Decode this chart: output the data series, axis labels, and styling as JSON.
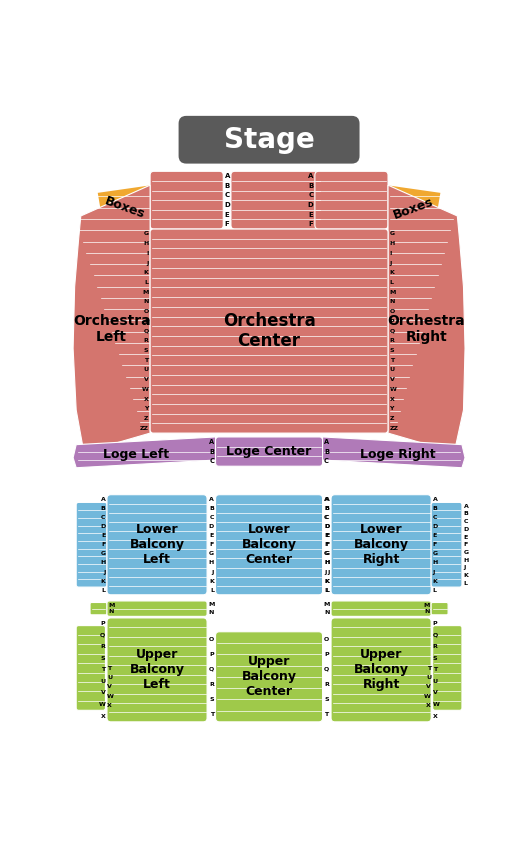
{
  "bg_color": "#ffffff",
  "stage_color": "#5a5a5a",
  "orchestra_color": "#d4756e",
  "loge_color": "#b07ab8",
  "lower_balcony_color": "#72b8db",
  "upper_balcony_color": "#9fc94a",
  "boxes_color": "#f0a830",
  "stage_label": "Stage",
  "boxes_label": "Boxes",
  "orch_left_label": "Orchestra\nLeft",
  "orch_center_label": "Orchestra\nCenter",
  "orch_right_label": "Orchestra\nRight",
  "loge_left_label": "Loge Left",
  "loge_center_label": "Loge Center",
  "loge_right_label": "Loge Right",
  "lb_left_label": "Lower\nBalcony\nLeft",
  "lb_center_label": "Lower\nBalcony\nCenter",
  "lb_right_label": "Lower\nBalcony\nRight",
  "ub_left_label": "Upper\nBalcony\nLeft",
  "ub_center_label": "Upper\nBalcony\nCenter",
  "ub_right_label": "Upper\nBalcony\nRight",
  "orch_top_rows": [
    "A",
    "B",
    "C",
    "D",
    "E",
    "F"
  ],
  "orch_main_rows": [
    "G",
    "H",
    "I",
    "J",
    "K",
    "L",
    "M",
    "N",
    "O",
    "P",
    "Q",
    "R",
    "S",
    "T",
    "U",
    "V",
    "W",
    "X",
    "Y",
    "Z",
    "ZZ"
  ],
  "loge_rows": [
    "A",
    "B",
    "C"
  ],
  "lb_rows": [
    "A",
    "B",
    "C",
    "D",
    "E",
    "F",
    "G",
    "H",
    "J",
    "K",
    "L"
  ],
  "ub_mn_rows": [
    "M",
    "N"
  ],
  "ub_main_rows": [
    "O",
    "P",
    "Q",
    "R",
    "S",
    "T"
  ],
  "ub_far_rows": [
    "P",
    "Q",
    "R",
    "S",
    "T",
    "U",
    "V",
    "W",
    "X"
  ],
  "ub_ext_rows": [
    "T",
    "U",
    "V",
    "W",
    "X"
  ]
}
